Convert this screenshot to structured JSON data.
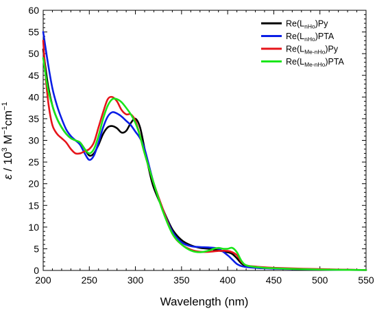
{
  "chart_data": {
    "type": "line",
    "xlabel": "Wavelength (nm)",
    "ylabel": {
      "symbol": "ε",
      "text": " / 10",
      "exp1": "3",
      "unit": " M",
      "exp2": "−1",
      "unit2": "cm",
      "exp3": "−1"
    },
    "xlim": [
      200,
      550
    ],
    "ylim": [
      0,
      60
    ],
    "xticks": [
      200,
      250,
      300,
      350,
      400,
      450,
      500,
      550
    ],
    "yticks": [
      0,
      5,
      10,
      15,
      20,
      25,
      30,
      35,
      40,
      45,
      50,
      55,
      60
    ],
    "x_minor_step": 10,
    "y_minor_step": 1,
    "grid": false,
    "legend_position": "top-right",
    "series": [
      {
        "name": "Re(LnHo)Py",
        "label_parts": {
          "pre": "Re(L",
          "sub": "nHo",
          "post": ")Py"
        },
        "color": "#000000",
        "x": [
          200,
          205,
          210,
          215,
          220,
          225,
          230,
          235,
          240,
          245,
          250,
          255,
          260,
          265,
          270,
          275,
          280,
          285,
          290,
          295,
          300,
          305,
          310,
          315,
          320,
          330,
          340,
          350,
          360,
          370,
          380,
          390,
          400,
          405,
          410,
          415,
          420,
          430,
          450,
          500,
          550
        ],
        "y": [
          51,
          43,
          38,
          35,
          33,
          31.5,
          30.5,
          30,
          29.5,
          28,
          26.5,
          27,
          29,
          31.5,
          33,
          33.3,
          32.8,
          31.8,
          32.2,
          34,
          35,
          33,
          28,
          23,
          19,
          14,
          9.5,
          7,
          5.8,
          5.2,
          5,
          4.6,
          4.2,
          3.8,
          2.8,
          1.6,
          1,
          0.8,
          0.5,
          0.2,
          0.1
        ]
      },
      {
        "name": "Re(LnHo)PTA",
        "label_parts": {
          "pre": "Re(L",
          "sub": "nHo",
          "post": ")PTA"
        },
        "color": "#0a1ee6",
        "x": [
          200,
          205,
          210,
          215,
          220,
          225,
          230,
          235,
          240,
          245,
          250,
          255,
          260,
          265,
          270,
          275,
          280,
          285,
          290,
          295,
          300,
          305,
          310,
          320,
          330,
          340,
          350,
          360,
          370,
          380,
          390,
          400,
          405,
          410,
          415,
          420,
          430,
          450,
          500,
          550
        ],
        "y": [
          55,
          48,
          42,
          38,
          35,
          32.5,
          31,
          30,
          29,
          27,
          25.5,
          26.5,
          29.5,
          33,
          35.5,
          36.5,
          36.2,
          35.5,
          34.5,
          33.5,
          32,
          30.5,
          28,
          20,
          14,
          9,
          6.5,
          5.6,
          5.4,
          5.3,
          5,
          3.5,
          2.5,
          1.5,
          1,
          0.8,
          0.6,
          0.4,
          0.2,
          0.1
        ]
      },
      {
        "name": "Re(LMe-nHo)Py",
        "label_parts": {
          "pre": "Re(L",
          "sub": "Me-nHo",
          "post": ")Py"
        },
        "color": "#e6141a",
        "x": [
          200,
          203,
          206,
          210,
          215,
          220,
          225,
          230,
          235,
          240,
          245,
          250,
          255,
          260,
          265,
          270,
          275,
          280,
          285,
          290,
          295,
          300,
          305,
          310,
          320,
          330,
          340,
          350,
          360,
          370,
          380,
          390,
          400,
          405,
          410,
          415,
          420,
          430,
          450,
          500,
          550
        ],
        "y": [
          53,
          44,
          38,
          33.5,
          31.5,
          30.5,
          29.5,
          28,
          27,
          27,
          27.5,
          28,
          29.5,
          33,
          36.5,
          39.5,
          40,
          39,
          37,
          36,
          36,
          34.5,
          31,
          27,
          20,
          14,
          8.5,
          6,
          4.8,
          4.3,
          4.3,
          4.5,
          4.5,
          4.2,
          3.5,
          2,
          1.2,
          0.9,
          0.6,
          0.3,
          0.1
        ]
      },
      {
        "name": "Re(LMe-nHo)PTA",
        "label_parts": {
          "pre": "Re(L",
          "sub": "Me-nHo",
          "post": ")PTA"
        },
        "color": "#19e619",
        "x": [
          200,
          205,
          210,
          215,
          220,
          225,
          230,
          235,
          240,
          245,
          250,
          255,
          260,
          265,
          270,
          275,
          280,
          285,
          290,
          295,
          300,
          305,
          310,
          320,
          330,
          340,
          350,
          360,
          370,
          380,
          385,
          390,
          395,
          400,
          405,
          410,
          415,
          420,
          430,
          450,
          500,
          550
        ],
        "y": [
          49,
          42,
          38,
          35,
          33,
          31.5,
          30.5,
          30,
          29.5,
          28,
          27,
          28,
          31,
          35,
          38,
          39.5,
          39.5,
          38.8,
          37.5,
          36,
          34,
          31,
          27,
          20,
          13.5,
          8.5,
          6,
          4.6,
          4.2,
          4.6,
          5,
          5.2,
          5,
          5,
          5.2,
          4.2,
          2.2,
          1.2,
          0.8,
          0.5,
          0.2,
          0.1
        ]
      }
    ]
  }
}
